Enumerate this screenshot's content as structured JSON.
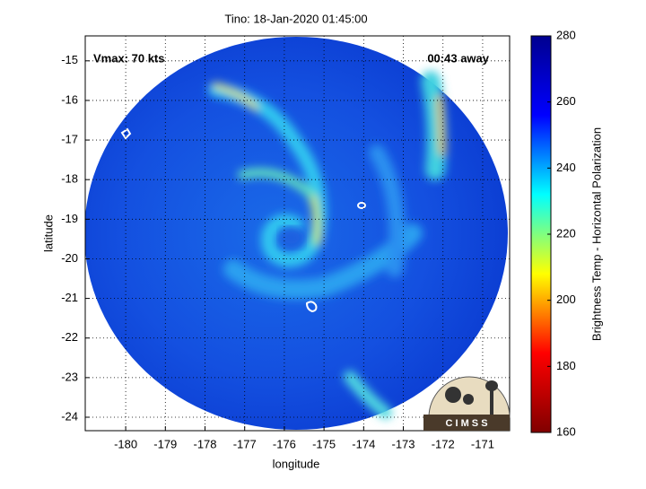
{
  "chart_data": {
    "type": "image-map",
    "title": "Tino: 18-Jan-2020 01:45:00",
    "x_label": "longitude",
    "y_label": "latitude",
    "xlim": [
      -181.02,
      -170.32
    ],
    "ylim": [
      -24.34,
      -14.37
    ],
    "xticks": [
      -180,
      -179,
      -178,
      -177,
      -176,
      -175,
      -174,
      -173,
      -172,
      -171
    ],
    "yticks": [
      -24,
      -23,
      -22,
      -21,
      -20,
      -19,
      -18,
      -17,
      -16,
      -15
    ],
    "grid": true,
    "annotations": [
      "Vmax: 70 kts",
      "00:43 away"
    ],
    "logo": "C I M S S",
    "colorbar": {
      "label": "Brightness Temp - Horizontal Polarization",
      "lim": [
        160,
        280
      ],
      "ticks": [
        160,
        180,
        200,
        220,
        240,
        260,
        280
      ],
      "colormap": "jet"
    }
  }
}
